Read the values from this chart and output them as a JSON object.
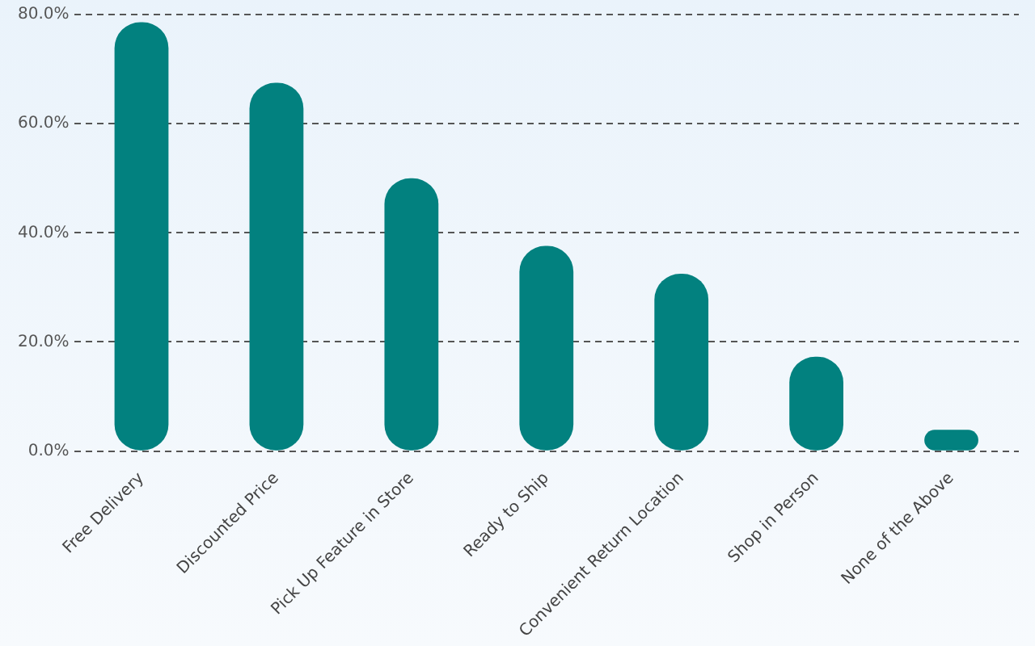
{
  "chart_data": {
    "type": "bar",
    "categories": [
      "Free Delivery",
      "Discounted Price",
      "Pick Up Feature in Store",
      "Ready to Ship",
      "Convenient Return Location",
      "Shop in Person",
      "None of the Above"
    ],
    "values": [
      78.6,
      67.5,
      50.0,
      37.6,
      32.5,
      17.3,
      3.9
    ],
    "color": "#02817f",
    "ylim": [
      0,
      80
    ],
    "yticks": [
      {
        "value": 0,
        "label": "0.0%"
      },
      {
        "value": 20,
        "label": "20.0%"
      },
      {
        "value": 40,
        "label": "40.0%"
      },
      {
        "value": 60,
        "label": "60.0%"
      },
      {
        "value": 80,
        "label": "80.0%"
      }
    ],
    "grid": "y"
  }
}
